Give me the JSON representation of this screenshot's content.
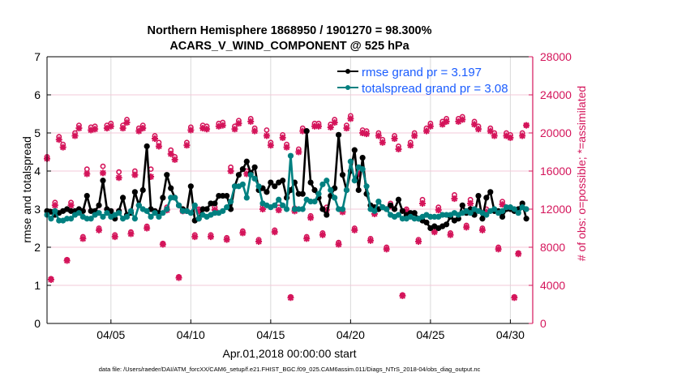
{
  "chart_data": {
    "type": "line",
    "title_line1": "Northern Hemisphere 1868950 / 1901270 = 98.300%",
    "title_line2": "ACARS_V_WIND_COMPONENT @ 525 hPa",
    "xlabel": "Apr.01,2018 00:00:00 start",
    "ylabel": "rmse and totalspread",
    "y2label": "# of obs: o=possible; *=assimilated",
    "footnote": "data file: /Users/raeder/DAI/ATM_forcXX/CAM6_setup/f.e21.FHIST_BGC.f09_025.CAM6assim.011/Diags_NTrS_2018-04/obs_diag_output.nc",
    "x_units": "days since Apr.01,2018 00:00",
    "x_start": 0,
    "x_step": 0.25,
    "xlim": [
      0,
      30.4
    ],
    "xticks": [
      4,
      9,
      14,
      19,
      24,
      29
    ],
    "xtick_labels": [
      "04/05",
      "04/10",
      "04/15",
      "04/20",
      "04/25",
      "04/30"
    ],
    "ylim": [
      0,
      7
    ],
    "yticks": [
      "0",
      "1",
      "2",
      "3",
      "4",
      "5",
      "6",
      "7"
    ],
    "y2lim": [
      0,
      28000
    ],
    "y2ticks": [
      "0",
      "4000",
      "8000",
      "12000",
      "16000",
      "20000",
      "24000",
      "28000"
    ],
    "grid": true,
    "legend_position": "top-right",
    "colors": {
      "rmse": "#000000",
      "spread": "#008080",
      "obs": "#d4145a",
      "legend_text": "#1a5cff"
    },
    "series": [
      {
        "name": "rmse grand pr = 3.197",
        "axis": "left",
        "values": [
          2.95,
          2.93,
          2.85,
          2.9,
          2.95,
          3.0,
          2.95,
          2.95,
          3.0,
          2.95,
          3.35,
          2.95,
          2.95,
          3.1,
          3.75,
          3.0,
          2.95,
          2.75,
          2.95,
          3.3,
          2.85,
          2.9,
          3.45,
          3.1,
          3.5,
          4.65,
          3.0,
          2.95,
          2.9,
          3.3,
          3.9,
          3.55,
          3.3,
          3.1,
          3.0,
          2.95,
          3.6,
          2.7,
          2.75,
          3.0,
          3.0,
          3.15,
          3.15,
          3.35,
          3.35,
          3.35,
          3.0,
          3.6,
          3.9,
          4.05,
          4.25,
          3.95,
          4.1,
          3.5,
          3.55,
          3.45,
          3.7,
          3.6,
          3.7,
          3.75,
          3.3,
          3.5,
          3.7,
          3.4,
          3.4,
          5.05,
          3.7,
          3.5,
          3.3,
          3.0,
          2.85,
          3.35,
          3.55,
          4.95,
          3.9,
          3.5,
          4.0,
          4.55,
          3.5,
          4.35,
          3.4,
          3.1,
          3.05,
          3.0,
          3.05,
          3.0,
          3.1,
          3.0,
          3.25,
          2.95,
          2.85,
          2.9,
          2.9,
          2.75,
          2.7,
          2.65,
          2.5,
          2.55,
          2.5,
          2.55,
          2.6,
          2.8,
          2.7,
          2.75,
          3.1,
          2.9,
          3.0,
          2.85,
          3.35,
          2.75,
          3.3,
          3.45,
          2.95,
          2.95,
          2.8,
          3.0,
          3.0,
          2.95,
          3.0,
          3.15,
          2.75
        ]
      },
      {
        "name": "totalspread grand pr = 3.08",
        "axis": "left",
        "values": [
          2.85,
          2.75,
          2.95,
          2.7,
          2.7,
          2.75,
          2.75,
          2.85,
          2.9,
          2.8,
          2.75,
          2.75,
          2.85,
          2.9,
          2.8,
          2.9,
          2.8,
          2.85,
          2.9,
          2.75,
          2.8,
          2.95,
          2.75,
          3.1,
          3.0,
          2.95,
          2.8,
          2.9,
          2.8,
          2.9,
          3.0,
          3.3,
          3.3,
          3.1,
          2.95,
          2.95,
          2.9,
          3.1,
          2.75,
          2.85,
          2.8,
          2.85,
          2.9,
          2.9,
          2.95,
          3.05,
          3.2,
          3.6,
          3.6,
          3.65,
          3.3,
          3.9,
          3.8,
          3.6,
          3.15,
          3.1,
          3.05,
          3.1,
          3.25,
          3.1,
          3.0,
          4.4,
          3.0,
          3.0,
          3.0,
          3.25,
          3.2,
          3.2,
          3.4,
          3.65,
          3.75,
          3.5,
          3.3,
          3.0,
          3.0,
          3.5,
          4.25,
          3.75,
          4.1,
          4.05,
          3.6,
          3.0,
          2.95,
          3.2,
          3.05,
          3.0,
          2.85,
          2.8,
          2.85,
          2.75,
          2.75,
          2.8,
          2.75,
          2.75,
          2.8,
          2.85,
          2.8,
          2.8,
          2.8,
          2.85,
          2.85,
          2.85,
          2.9,
          2.85,
          2.9,
          2.95,
          2.9,
          3.0,
          2.95,
          2.9,
          2.85,
          2.95,
          3.0,
          2.9,
          2.95,
          3.05,
          3.05,
          3.0,
          2.9,
          3.05,
          3.0
        ]
      },
      {
        "name": "obs possible",
        "axis": "right",
        "marker": "o",
        "values": [
          17500,
          4700,
          12700,
          19600,
          18800,
          6700,
          12700,
          20000,
          20800,
          9100,
          16200,
          20600,
          20700,
          10000,
          16500,
          20800,
          21000,
          9300,
          15900,
          20800,
          21400,
          9600,
          16000,
          20500,
          20800,
          10200,
          16200,
          19700,
          19000,
          8400,
          12200,
          18200,
          17500,
          4900,
          12000,
          19000,
          20600,
          9300,
          12000,
          20800,
          20700,
          9300,
          12200,
          21000,
          21100,
          9000,
          16400,
          20700,
          21300,
          9700,
          16000,
          21500,
          20500,
          8800,
          12300,
          20300,
          19000,
          9800,
          12200,
          19800,
          18800,
          2800,
          12100,
          18300,
          20500,
          9100,
          11300,
          21000,
          21000,
          9500,
          12200,
          20900,
          21400,
          8500,
          12000,
          20800,
          21800,
          10000,
          16200,
          20300,
          20200,
          8900,
          11800,
          20000,
          19300,
          8000,
          12600,
          19700,
          18600,
          3000,
          12000,
          19000,
          20000,
          8800,
          13000,
          20500,
          21000,
          9800,
          12200,
          21200,
          21500,
          9500,
          13500,
          21500,
          21700,
          10300,
          13000,
          21200,
          20700,
          10000,
          12000,
          20500,
          20000,
          8000,
          12800,
          20000,
          19800,
          2800,
          7400,
          20000,
          20800
        ]
      },
      {
        "name": "obs assimilated",
        "axis": "right",
        "marker": "*",
        "values": [
          17300,
          4600,
          12400,
          19300,
          18500,
          6600,
          12400,
          19700,
          20500,
          8900,
          15700,
          20300,
          20400,
          9800,
          15800,
          20500,
          20700,
          9100,
          15300,
          20500,
          21100,
          9400,
          15600,
          20200,
          20500,
          10000,
          15400,
          19400,
          18600,
          8300,
          11900,
          17800,
          17200,
          4800,
          11800,
          18700,
          20300,
          9100,
          11800,
          20500,
          20400,
          9100,
          11900,
          20700,
          20800,
          8800,
          16000,
          20400,
          21000,
          9500,
          15700,
          21200,
          20200,
          8600,
          12000,
          19700,
          18700,
          9600,
          11900,
          19500,
          18500,
          2700,
          11800,
          18000,
          20200,
          8900,
          11100,
          20700,
          20700,
          9300,
          11900,
          20600,
          21100,
          8300,
          11700,
          20500,
          21500,
          9800,
          15700,
          20000,
          19900,
          8700,
          11500,
          19700,
          19000,
          7800,
          12300,
          19400,
          18300,
          2900,
          11800,
          18700,
          19700,
          8600,
          12600,
          20200,
          20700,
          9600,
          11900,
          20900,
          21200,
          9300,
          13100,
          21200,
          21400,
          10100,
          12600,
          20900,
          20400,
          9800,
          11700,
          20200,
          19700,
          7800,
          12500,
          19700,
          19500,
          2700,
          7300,
          19700,
          20800
        ]
      }
    ]
  }
}
